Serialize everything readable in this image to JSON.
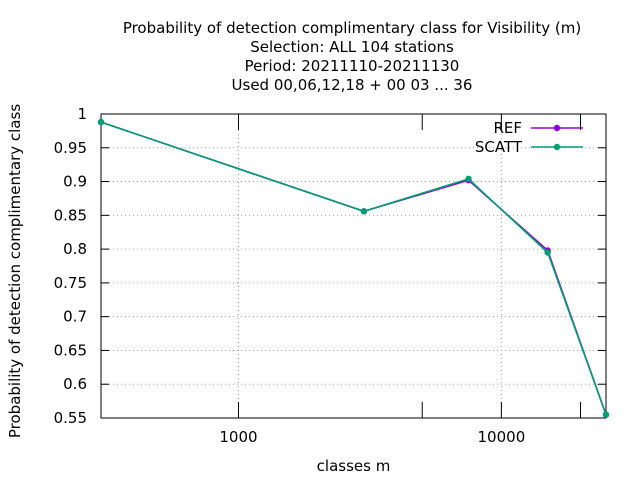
{
  "chart_data": {
    "type": "line",
    "title_lines": [
      "Probability of detection complimentary class  for Visibility (m)",
      "Selection: ALL    104 stations",
      "Period: 20211110-20211130",
      "Used  00,06,12,18 + 00 03 ... 36"
    ],
    "xlabel": "classes m",
    "ylabel": "Probability of detection complimentary class",
    "xscale": "log",
    "xlim": [
      300,
      25000
    ],
    "ylim": [
      0.55,
      1.0
    ],
    "x_ticks": [
      1000,
      10000
    ],
    "x_tick_labels": [
      "1000",
      "10000"
    ],
    "x_minor_ticks": [
      5000,
      20000
    ],
    "y_ticks": [
      0.55,
      0.6,
      0.65,
      0.7,
      0.75,
      0.8,
      0.85,
      0.9,
      0.95,
      1.0
    ],
    "y_tick_labels": [
      "0.55",
      "0.6",
      "0.65",
      "0.7",
      "0.75",
      "0.8",
      "0.85",
      "0.9",
      "0.95",
      "1"
    ],
    "grid": true,
    "legend_position": "top-right",
    "series": [
      {
        "name": "REF",
        "color": "#9400d3",
        "x": [
          300,
          3000,
          7500,
          15000,
          25000
        ],
        "y": [
          0.988,
          0.856,
          0.902,
          0.798,
          0.555
        ]
      },
      {
        "name": "SCATT",
        "color": "#009e73",
        "x": [
          300,
          3000,
          7500,
          15000,
          25000
        ],
        "y": [
          0.988,
          0.856,
          0.904,
          0.795,
          0.555
        ]
      }
    ]
  }
}
